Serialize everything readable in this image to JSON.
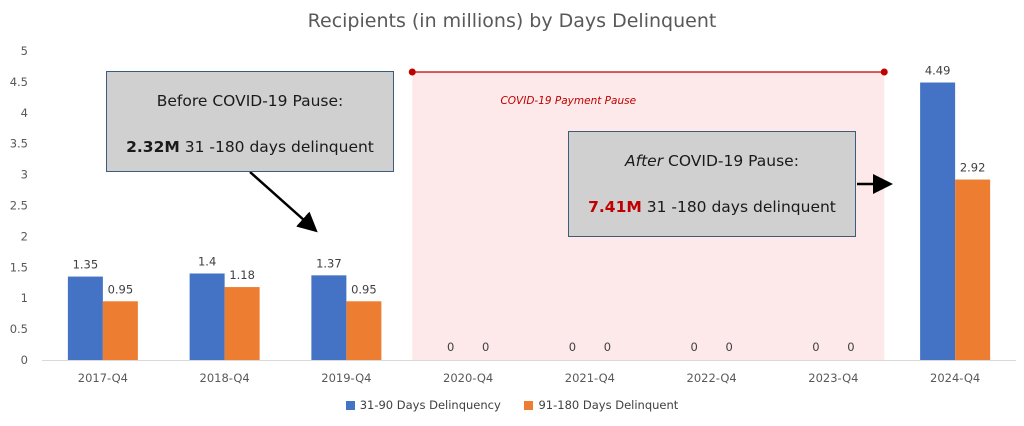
{
  "chart_data": {
    "type": "bar",
    "title": "Recipients (in millions) by Days Delinquent",
    "categories": [
      "2017-Q4",
      "2018-Q4",
      "2019-Q4",
      "2020-Q4",
      "2021-Q4",
      "2022-Q4",
      "2023-Q4",
      "2024-Q4"
    ],
    "series": [
      {
        "name": "31-90 Days Delinquency",
        "color": "#4472c4",
        "values": [
          1.35,
          1.4,
          1.37,
          0,
          0,
          0,
          0,
          4.49
        ],
        "labels": [
          "1.35",
          "1.4",
          "1.37",
          "0",
          "0",
          "0",
          "0",
          "4.49"
        ]
      },
      {
        "name": "91-180 Days Delinquent",
        "color": "#ed7d31",
        "values": [
          0.95,
          1.18,
          0.95,
          0,
          0,
          0,
          0,
          2.92
        ],
        "labels": [
          "0.95",
          "1.18",
          "0.95",
          "0",
          "0",
          "0",
          "0",
          "2.92"
        ]
      }
    ],
    "ylim": [
      0,
      5
    ],
    "yticks": [
      "0",
      "0.5",
      "1",
      "1.5",
      "2",
      "2.5",
      "3",
      "3.5",
      "4",
      "4.5",
      "5"
    ],
    "grid": false,
    "legend_position": "bottom",
    "pause_region": {
      "label": "COVID-19 Payment Pause",
      "from_category": "2020-Q4",
      "to_category": "2023-Q4",
      "fill": "#fde9e9",
      "line_color": "#c00000"
    },
    "annotations": {
      "before": {
        "line1": "Before COVID-19 Pause:",
        "value": "2.32M",
        "text": " 31 -180 days delinquent"
      },
      "after": {
        "line1_italic": "After",
        "line1_rest": " COVID-19 Pause:",
        "value": "7.41M",
        "text": " 31 -180 days delinquent",
        "value_color": "#c00000"
      }
    }
  }
}
